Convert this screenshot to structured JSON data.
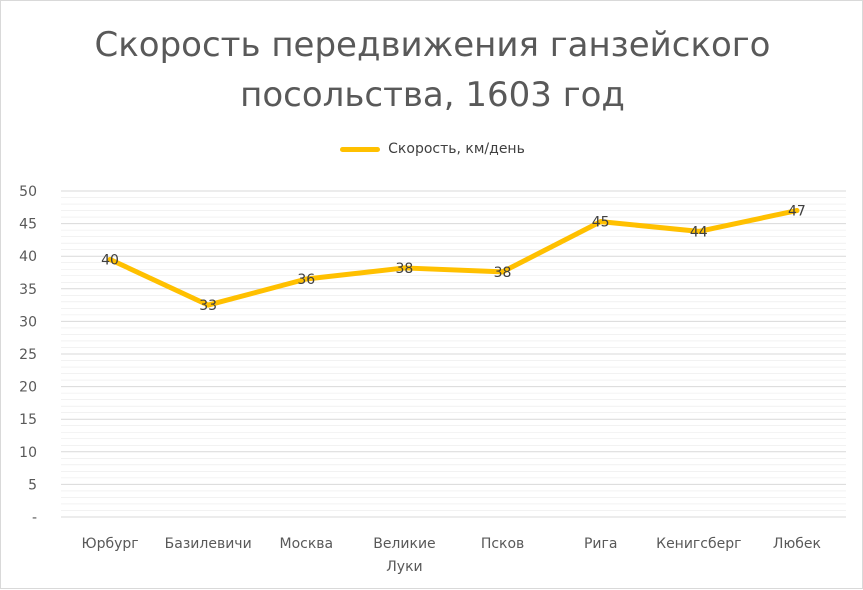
{
  "chart_data": {
    "type": "line",
    "title_lines": [
      "Скорость передвижения ганзейского",
      "посольства, 1603 год"
    ],
    "xlabel": "",
    "ylabel": "",
    "categories": [
      [
        "Юрбург"
      ],
      [
        "Базилевичи"
      ],
      [
        "Москва"
      ],
      [
        "Великие",
        "Луки"
      ],
      [
        "Псков"
      ],
      [
        "Рига"
      ],
      [
        "Кенигсберг"
      ],
      [
        "Любек"
      ]
    ],
    "series": [
      {
        "name": "Скорость, км/день",
        "values": [
          39.5,
          32.5,
          36.5,
          38.2,
          37.6,
          45.3,
          43.8,
          47.0
        ],
        "labels": [
          "40",
          "33",
          "36",
          "38",
          "38",
          "45",
          "44",
          "47"
        ],
        "color": "#FFC000"
      }
    ],
    "ylim": [
      0,
      50
    ],
    "yticks": [
      0,
      5,
      10,
      15,
      20,
      25,
      30,
      35,
      40,
      45,
      50
    ],
    "ytick_labels": [
      "-",
      "5",
      "10",
      "15",
      "20",
      "25",
      "30",
      "35",
      "40",
      "45",
      "50"
    ],
    "grid": true,
    "legend_position": "top"
  },
  "colors": {
    "gridline": "#d9d9d9",
    "series": "#FFC000"
  }
}
